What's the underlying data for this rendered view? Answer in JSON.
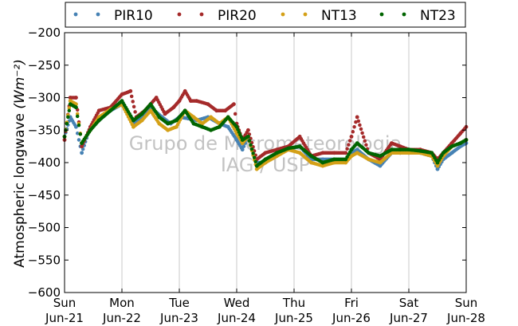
{
  "chart_data": {
    "type": "scatter",
    "xlabel": "",
    "ylabel": "Atmospheric longwave",
    "ylabel_unit": "(Wm⁻²)",
    "ylim": [
      -600,
      -200
    ],
    "yticks": [
      -200,
      -250,
      -300,
      -350,
      -400,
      -450,
      -500,
      -550,
      -600
    ],
    "xlim": [
      "2015-06-21",
      "2015-06-28"
    ],
    "xticks": [
      {
        "day": "Sun",
        "date": "Jun-21"
      },
      {
        "day": "Mon",
        "date": "Jun-22"
      },
      {
        "day": "Tue",
        "date": "Jun-23"
      },
      {
        "day": "Wed",
        "date": "Jun-24"
      },
      {
        "day": "Thu",
        "date": "Jun-25"
      },
      {
        "day": "Fri",
        "date": "Jun-26"
      },
      {
        "day": "Sat",
        "date": "Jun-27"
      },
      {
        "day": "Sun",
        "date": "Jun-28"
      }
    ],
    "grid": "vertical",
    "legend_position": "top",
    "watermark": [
      "Grupo de Micrometeorologia",
      "IAG / USP"
    ],
    "series": [
      {
        "name": "PIR10",
        "color": "#4682b4",
        "points": [
          [
            0.0,
            -360
          ],
          [
            0.1,
            -330
          ],
          [
            0.2,
            -345
          ],
          [
            0.3,
            -385
          ],
          [
            0.45,
            -345
          ],
          [
            0.6,
            -335
          ],
          [
            0.8,
            -320
          ],
          [
            1.0,
            -310
          ],
          [
            1.2,
            -340
          ],
          [
            1.35,
            -330
          ],
          [
            1.5,
            -315
          ],
          [
            1.7,
            -330
          ],
          [
            1.85,
            -340
          ],
          [
            2.0,
            -330
          ],
          [
            2.15,
            -332
          ],
          [
            2.3,
            -335
          ],
          [
            2.5,
            -330
          ],
          [
            2.7,
            -340
          ],
          [
            2.85,
            -345
          ],
          [
            3.0,
            -365
          ],
          [
            3.1,
            -380
          ],
          [
            3.2,
            -360
          ],
          [
            3.35,
            -400
          ],
          [
            3.5,
            -400
          ],
          [
            3.7,
            -385
          ],
          [
            3.9,
            -380
          ],
          [
            4.1,
            -375
          ],
          [
            4.3,
            -395
          ],
          [
            4.5,
            -395
          ],
          [
            4.7,
            -395
          ],
          [
            4.9,
            -395
          ],
          [
            5.0,
            -385
          ],
          [
            5.1,
            -380
          ],
          [
            5.3,
            -395
          ],
          [
            5.5,
            -405
          ],
          [
            5.7,
            -385
          ],
          [
            5.85,
            -385
          ],
          [
            6.0,
            -385
          ],
          [
            6.2,
            -385
          ],
          [
            6.4,
            -390
          ],
          [
            6.5,
            -410
          ],
          [
            6.6,
            -395
          ],
          [
            6.75,
            -385
          ],
          [
            6.9,
            -375
          ],
          [
            7.0,
            -370
          ]
        ]
      },
      {
        "name": "PIR20",
        "color": "#a52a2a",
        "points": [
          [
            0.0,
            -365
          ],
          [
            0.1,
            -300
          ],
          [
            0.2,
            -300
          ],
          [
            0.3,
            -375
          ],
          [
            0.45,
            -345
          ],
          [
            0.6,
            -320
          ],
          [
            0.8,
            -315
          ],
          [
            1.0,
            -295
          ],
          [
            1.15,
            -290
          ],
          [
            1.25,
            -330
          ],
          [
            1.4,
            -320
          ],
          [
            1.6,
            -300
          ],
          [
            1.75,
            -325
          ],
          [
            1.9,
            -315
          ],
          [
            2.0,
            -305
          ],
          [
            2.1,
            -290
          ],
          [
            2.2,
            -305
          ],
          [
            2.3,
            -305
          ],
          [
            2.5,
            -310
          ],
          [
            2.65,
            -320
          ],
          [
            2.8,
            -320
          ],
          [
            2.95,
            -310
          ],
          [
            3.0,
            -340
          ],
          [
            3.1,
            -365
          ],
          [
            3.2,
            -350
          ],
          [
            3.35,
            -395
          ],
          [
            3.5,
            -385
          ],
          [
            3.7,
            -380
          ],
          [
            3.9,
            -375
          ],
          [
            4.1,
            -360
          ],
          [
            4.3,
            -390
          ],
          [
            4.5,
            -385
          ],
          [
            4.7,
            -385
          ],
          [
            4.9,
            -385
          ],
          [
            5.0,
            -360
          ],
          [
            5.1,
            -330
          ],
          [
            5.3,
            -385
          ],
          [
            5.5,
            -395
          ],
          [
            5.7,
            -370
          ],
          [
            5.85,
            -375
          ],
          [
            6.0,
            -380
          ],
          [
            6.2,
            -380
          ],
          [
            6.4,
            -385
          ],
          [
            6.5,
            -395
          ],
          [
            6.6,
            -385
          ],
          [
            6.75,
            -370
          ],
          [
            6.9,
            -355
          ],
          [
            7.0,
            -345
          ]
        ]
      },
      {
        "name": "NT13",
        "color": "#d4a017",
        "points": [
          [
            0.0,
            -360
          ],
          [
            0.1,
            -305
          ],
          [
            0.2,
            -310
          ],
          [
            0.3,
            -370
          ],
          [
            0.45,
            -350
          ],
          [
            0.6,
            -330
          ],
          [
            0.8,
            -318
          ],
          [
            1.0,
            -310
          ],
          [
            1.2,
            -345
          ],
          [
            1.35,
            -335
          ],
          [
            1.5,
            -320
          ],
          [
            1.65,
            -340
          ],
          [
            1.8,
            -350
          ],
          [
            1.95,
            -345
          ],
          [
            2.1,
            -320
          ],
          [
            2.25,
            -330
          ],
          [
            2.4,
            -340
          ],
          [
            2.55,
            -330
          ],
          [
            2.7,
            -340
          ],
          [
            2.85,
            -330
          ],
          [
            3.0,
            -355
          ],
          [
            3.1,
            -370
          ],
          [
            3.2,
            -360
          ],
          [
            3.35,
            -410
          ],
          [
            3.5,
            -400
          ],
          [
            3.7,
            -390
          ],
          [
            3.9,
            -380
          ],
          [
            4.1,
            -385
          ],
          [
            4.3,
            -400
          ],
          [
            4.5,
            -405
          ],
          [
            4.7,
            -400
          ],
          [
            4.9,
            -400
          ],
          [
            5.0,
            -390
          ],
          [
            5.1,
            -385
          ],
          [
            5.3,
            -395
          ],
          [
            5.5,
            -400
          ],
          [
            5.7,
            -385
          ],
          [
            5.85,
            -385
          ],
          [
            6.0,
            -385
          ],
          [
            6.2,
            -385
          ],
          [
            6.4,
            -390
          ],
          [
            6.5,
            -405
          ],
          [
            6.6,
            -390
          ],
          [
            6.75,
            -375
          ],
          [
            6.9,
            -370
          ],
          [
            7.0,
            -365
          ]
        ]
      },
      {
        "name": "NT23",
        "color": "#006400",
        "points": [
          [
            0.0,
            -360
          ],
          [
            0.1,
            -310
          ],
          [
            0.2,
            -315
          ],
          [
            0.3,
            -370
          ],
          [
            0.45,
            -350
          ],
          [
            0.6,
            -335
          ],
          [
            0.8,
            -320
          ],
          [
            1.0,
            -305
          ],
          [
            1.2,
            -335
          ],
          [
            1.35,
            -325
          ],
          [
            1.5,
            -310
          ],
          [
            1.65,
            -330
          ],
          [
            1.8,
            -340
          ],
          [
            1.95,
            -335
          ],
          [
            2.1,
            -320
          ],
          [
            2.25,
            -340
          ],
          [
            2.4,
            -345
          ],
          [
            2.55,
            -350
          ],
          [
            2.7,
            -345
          ],
          [
            2.85,
            -330
          ],
          [
            3.0,
            -345
          ],
          [
            3.1,
            -365
          ],
          [
            3.2,
            -360
          ],
          [
            3.35,
            -405
          ],
          [
            3.5,
            -395
          ],
          [
            3.7,
            -385
          ],
          [
            3.9,
            -378
          ],
          [
            4.1,
            -375
          ],
          [
            4.3,
            -390
          ],
          [
            4.5,
            -400
          ],
          [
            4.7,
            -395
          ],
          [
            4.9,
            -395
          ],
          [
            5.0,
            -380
          ],
          [
            5.1,
            -370
          ],
          [
            5.3,
            -385
          ],
          [
            5.5,
            -390
          ],
          [
            5.7,
            -380
          ],
          [
            5.85,
            -380
          ],
          [
            6.0,
            -380
          ],
          [
            6.2,
            -382
          ],
          [
            6.4,
            -385
          ],
          [
            6.5,
            -400
          ],
          [
            6.6,
            -385
          ],
          [
            6.75,
            -375
          ],
          [
            6.9,
            -370
          ],
          [
            7.0,
            -365
          ]
        ]
      }
    ]
  }
}
